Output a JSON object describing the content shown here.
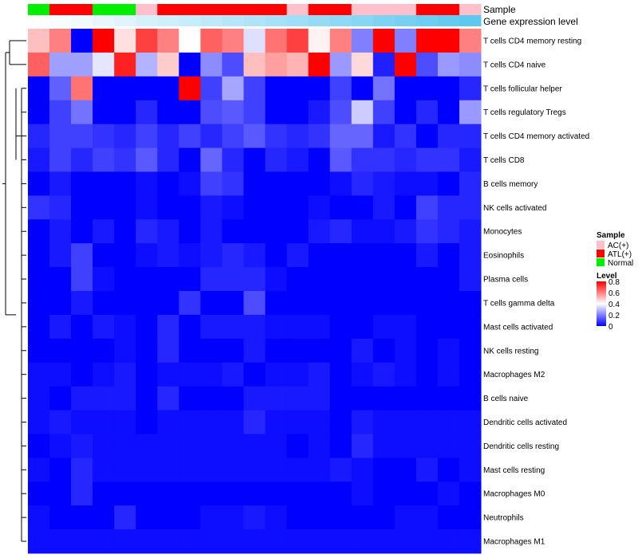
{
  "chart_data": {
    "type": "heatmap",
    "annotation_labels": {
      "sample": "Sample",
      "gene": "Gene expression level"
    },
    "samples": [
      "Normal",
      "ATL(+)",
      "ATL(+)",
      "Normal",
      "Normal",
      "AC(+)",
      "ATL(+)",
      "ATL(+)",
      "ATL(+)",
      "ATL(+)",
      "ATL(+)",
      "ATL(+)",
      "AC(+)",
      "ATL(+)",
      "ATL(+)",
      "AC(+)",
      "AC(+)",
      "AC(+)",
      "ATL(+)",
      "ATL(+)",
      "AC(+)"
    ],
    "sample_colors": {
      "AC(+)": "#ffc0cb",
      "ATL(+)": "#ff0000",
      "Normal": "#00ee00"
    },
    "gene_expression_level": [
      0.0,
      0.05,
      0.1,
      0.15,
      0.2,
      0.25,
      0.3,
      0.35,
      0.4,
      0.45,
      0.5,
      0.55,
      0.6,
      0.65,
      0.7,
      0.75,
      0.8,
      0.85,
      0.9,
      0.95,
      1.0
    ],
    "gene_colors": {
      "low": "#ffffff",
      "high": "#5ec8f0"
    },
    "rows": [
      "T cells CD4 memory resting",
      "T cells CD4 naive",
      "T cells follicular helper",
      "T cells regulatory  Tregs",
      "T cells CD4 memory activated",
      "T cells CD8",
      "B cells memory",
      "NK cells activated",
      "Monocytes",
      "Eosinophils",
      "Plasma cells",
      "T cells gamma delta",
      "Mast cells activated",
      "NK cells resting",
      "Macrophages M2",
      "B cells naive",
      "Dendritic cells activated",
      "Dendritic cells resting",
      "Mast cells resting",
      "Macrophages M0",
      "Neutrophils",
      "Macrophages M1"
    ],
    "values": [
      [
        0.5,
        0.6,
        0.0,
        0.8,
        0.45,
        0.7,
        0.6,
        0.4,
        0.65,
        0.6,
        0.35,
        0.62,
        0.7,
        0.42,
        0.6,
        0.2,
        0.8,
        0.2,
        0.8,
        0.8,
        0.6
      ],
      [
        0.65,
        0.25,
        0.25,
        0.36,
        0.75,
        0.28,
        0.48,
        0.0,
        0.22,
        0.12,
        0.5,
        0.55,
        0.52,
        0.8,
        0.24,
        0.46,
        0.05,
        0.8,
        0.12,
        0.24,
        0.22
      ],
      [
        0.0,
        0.15,
        0.62,
        0.0,
        0.0,
        0.0,
        0.0,
        0.8,
        0.1,
        0.26,
        0.1,
        0.0,
        0.0,
        0.0,
        0.1,
        0.0,
        0.18,
        0.0,
        0.0,
        0.0,
        0.06
      ],
      [
        0.0,
        0.1,
        0.18,
        0.0,
        0.0,
        0.06,
        0.0,
        0.0,
        0.12,
        0.14,
        0.1,
        0.0,
        0.0,
        0.04,
        0.12,
        0.32,
        0.1,
        0.0,
        0.06,
        0.0,
        0.24
      ],
      [
        0.06,
        0.1,
        0.1,
        0.08,
        0.06,
        0.1,
        0.06,
        0.1,
        0.06,
        0.1,
        0.14,
        0.08,
        0.06,
        0.08,
        0.16,
        0.16,
        0.04,
        0.08,
        0.0,
        0.06,
        0.06
      ],
      [
        0.04,
        0.1,
        0.06,
        0.1,
        0.08,
        0.14,
        0.06,
        0.0,
        0.16,
        0.06,
        0.0,
        0.06,
        0.04,
        0.0,
        0.14,
        0.08,
        0.08,
        0.06,
        0.08,
        0.08,
        0.04
      ],
      [
        0.0,
        0.04,
        0.0,
        0.0,
        0.0,
        0.02,
        0.0,
        0.02,
        0.1,
        0.08,
        0.0,
        0.0,
        0.0,
        0.0,
        0.02,
        0.06,
        0.04,
        0.02,
        0.02,
        0.0,
        0.06
      ],
      [
        0.08,
        0.06,
        0.0,
        0.0,
        0.0,
        0.02,
        0.0,
        0.0,
        0.04,
        0.02,
        0.0,
        0.0,
        0.0,
        0.02,
        0.0,
        0.0,
        0.04,
        0.0,
        0.1,
        0.06,
        0.06
      ],
      [
        0.0,
        0.04,
        0.0,
        0.04,
        0.0,
        0.06,
        0.04,
        0.0,
        0.04,
        0.0,
        0.0,
        0.0,
        0.0,
        0.04,
        0.06,
        0.02,
        0.02,
        0.04,
        0.08,
        0.06,
        0.04
      ],
      [
        0.0,
        0.04,
        0.1,
        0.0,
        0.0,
        0.02,
        0.04,
        0.02,
        0.04,
        0.06,
        0.04,
        0.0,
        0.04,
        0.0,
        0.0,
        0.0,
        0.0,
        0.0,
        0.04,
        0.0,
        0.04
      ],
      [
        0.0,
        0.0,
        0.1,
        0.02,
        0.0,
        0.0,
        0.0,
        0.0,
        0.06,
        0.06,
        0.06,
        0.02,
        0.0,
        0.0,
        0.0,
        0.0,
        0.0,
        0.0,
        0.0,
        0.0,
        0.04
      ],
      [
        0.0,
        0.0,
        0.04,
        0.0,
        0.0,
        0.0,
        0.0,
        0.08,
        0.0,
        0.0,
        0.12,
        0.0,
        0.0,
        0.0,
        0.0,
        0.0,
        0.0,
        0.0,
        0.0,
        0.0,
        0.0
      ],
      [
        0.0,
        0.04,
        0.0,
        0.04,
        0.02,
        0.0,
        0.06,
        0.0,
        0.04,
        0.04,
        0.04,
        0.02,
        0.02,
        0.02,
        0.0,
        0.0,
        0.02,
        0.02,
        0.0,
        0.0,
        0.0
      ],
      [
        0.0,
        0.0,
        0.0,
        0.0,
        0.02,
        0.0,
        0.06,
        0.0,
        0.0,
        0.0,
        0.04,
        0.0,
        0.0,
        0.0,
        0.0,
        0.04,
        0.0,
        0.02,
        0.0,
        0.02,
        0.0
      ],
      [
        0.02,
        0.02,
        0.0,
        0.02,
        0.04,
        0.0,
        0.02,
        0.02,
        0.02,
        0.04,
        0.0,
        0.02,
        0.02,
        0.04,
        0.0,
        0.02,
        0.04,
        0.02,
        0.0,
        0.02,
        0.0
      ],
      [
        0.02,
        0.0,
        0.04,
        0.04,
        0.04,
        0.0,
        0.06,
        0.0,
        0.0,
        0.0,
        0.04,
        0.04,
        0.04,
        0.04,
        0.0,
        0.0,
        0.0,
        0.0,
        0.0,
        0.0,
        0.0
      ],
      [
        0.02,
        0.04,
        0.02,
        0.02,
        0.02,
        0.0,
        0.02,
        0.02,
        0.02,
        0.02,
        0.06,
        0.02,
        0.02,
        0.02,
        0.0,
        0.04,
        0.02,
        0.02,
        0.02,
        0.02,
        0.02
      ],
      [
        0.0,
        0.02,
        0.04,
        0.02,
        0.02,
        0.02,
        0.02,
        0.02,
        0.02,
        0.02,
        0.02,
        0.02,
        0.0,
        0.02,
        0.0,
        0.06,
        0.02,
        0.02,
        0.02,
        0.02,
        0.02
      ],
      [
        0.02,
        0.0,
        0.06,
        0.02,
        0.02,
        0.02,
        0.02,
        0.02,
        0.02,
        0.02,
        0.02,
        0.02,
        0.02,
        0.02,
        0.04,
        0.02,
        0.0,
        0.0,
        0.04,
        0.0,
        0.02
      ],
      [
        0.0,
        0.0,
        0.06,
        0.0,
        0.0,
        0.0,
        0.0,
        0.0,
        0.0,
        0.0,
        0.0,
        0.0,
        0.0,
        0.0,
        0.0,
        0.02,
        0.0,
        0.0,
        0.0,
        0.02,
        0.0
      ],
      [
        0.02,
        0.0,
        0.0,
        0.0,
        0.06,
        0.0,
        0.0,
        0.0,
        0.02,
        0.02,
        0.04,
        0.02,
        0.0,
        0.0,
        0.0,
        0.0,
        0.0,
        0.02,
        0.02,
        0.0,
        0.0
      ],
      [
        0.02,
        0.02,
        0.02,
        0.02,
        0.02,
        0.02,
        0.02,
        0.02,
        0.02,
        0.02,
        0.02,
        0.02,
        0.02,
        0.02,
        0.02,
        0.02,
        0.02,
        0.02,
        0.02,
        0.02,
        0.02
      ]
    ],
    "color_scale": {
      "min": 0,
      "max": 0.8,
      "low": "#0000ff",
      "mid": "#ffffff",
      "high": "#ff0000",
      "mid_value": 0.4
    },
    "legend": {
      "sample_title": "Sample",
      "sample_entries": [
        "AC(+)",
        "ATL(+)",
        "Normal"
      ],
      "level_title": "Level",
      "level_ticks": [
        "0.8",
        "0.6",
        "0.4",
        "0.2",
        "0"
      ],
      "position": "right"
    },
    "row_dendrogram": "left"
  }
}
